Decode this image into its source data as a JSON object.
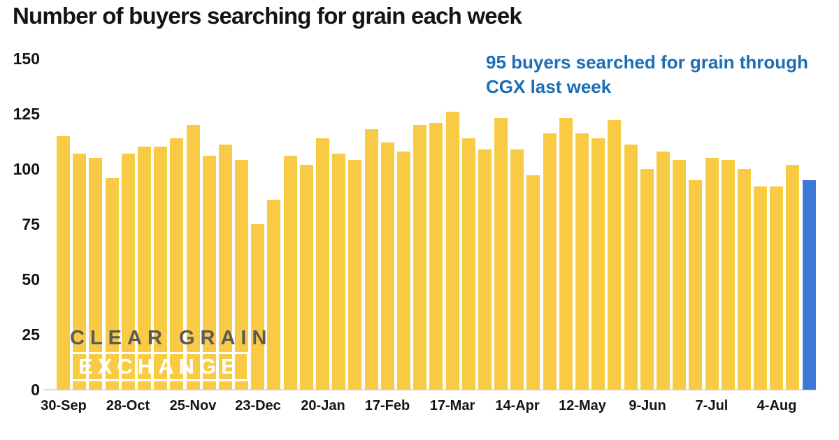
{
  "title": "Number of buyers searching for grain each week",
  "annotation": {
    "line1": "95 buyers searched for grain through",
    "line2": "CGX last week"
  },
  "watermark": {
    "line1": "CLEAR GRAIN",
    "line2": "EXCHANGE"
  },
  "colors": {
    "bar": "#F9CB45",
    "highlight_bar": "#3C78D8",
    "annotation_text": "#1B6EB5",
    "axis_text": "#141414",
    "watermark_gray": "#5A5A5A",
    "watermark_white": "#FFFFFF"
  },
  "chart_data": {
    "type": "bar",
    "title": "Number of buyers searching for grain each week",
    "values": [
      115,
      107,
      105,
      96,
      107,
      110,
      110,
      114,
      120,
      106,
      111,
      104,
      75,
      86,
      106,
      102,
      114,
      107,
      104,
      118,
      112,
      108,
      120,
      121,
      126,
      114,
      109,
      123,
      109,
      97,
      116,
      123,
      116,
      114,
      122,
      111,
      100,
      108,
      104,
      95,
      105,
      104,
      100,
      92,
      92,
      102,
      95
    ],
    "highlight_index": 46,
    "highlight_value": 95,
    "x_tick_labels": [
      "30-Sep",
      "28-Oct",
      "25-Nov",
      "23-Dec",
      "20-Jan",
      "17-Feb",
      "17-Mar",
      "14-Apr",
      "12-May",
      "9-Jun",
      "7-Jul",
      "4-Aug"
    ],
    "x_tick_every": 4,
    "y_ticks": [
      0,
      25,
      50,
      75,
      100,
      125,
      150
    ],
    "ylim": [
      0,
      150
    ],
    "grid": false,
    "legend": false
  }
}
